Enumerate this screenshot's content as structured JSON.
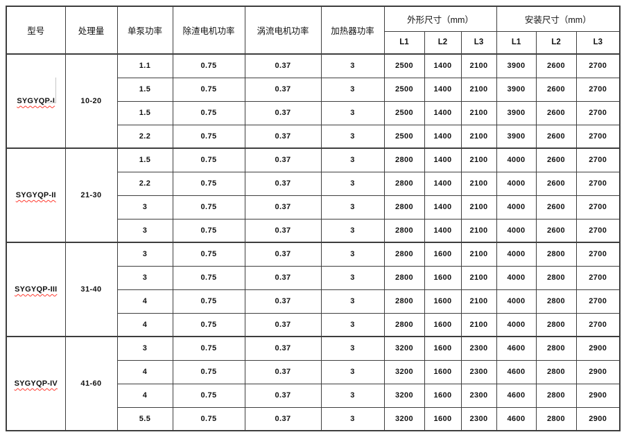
{
  "colors": {
    "background": "#ffffff",
    "border": "#3d3d3d",
    "text": "#111111",
    "spellcheck_underline": "#ff3b30",
    "stray_line": "#c5c5c5"
  },
  "table": {
    "header": {
      "model": "型号",
      "capacity": "处理量",
      "pump_power": "单泵功率",
      "slag_motor_power": "除渣电机功率",
      "eddy_motor_power": "涡流电机功率",
      "heater_power": "加热器功率",
      "overall_dims": "外形尺寸（mm）",
      "install_dims": "安装尺寸（mm）",
      "dims": [
        "L1",
        "L2",
        "L3"
      ]
    },
    "groups": [
      {
        "model": "SYGYQP-I",
        "capacity": "10-20",
        "stray_artifact": true,
        "rows": [
          {
            "pump": "1.1",
            "slag": "0.75",
            "eddy": "0.37",
            "heater": "3",
            "overall": [
              "2500",
              "1400",
              "2100"
            ],
            "install": [
              "3900",
              "2600",
              "2700"
            ]
          },
          {
            "pump": "1.5",
            "slag": "0.75",
            "eddy": "0.37",
            "heater": "3",
            "overall": [
              "2500",
              "1400",
              "2100"
            ],
            "install": [
              "3900",
              "2600",
              "2700"
            ]
          },
          {
            "pump": "1.5",
            "slag": "0.75",
            "eddy": "0.37",
            "heater": "3",
            "overall": [
              "2500",
              "1400",
              "2100"
            ],
            "install": [
              "3900",
              "2600",
              "2700"
            ]
          },
          {
            "pump": "2.2",
            "slag": "0.75",
            "eddy": "0.37",
            "heater": "3",
            "overall": [
              "2500",
              "1400",
              "2100"
            ],
            "install": [
              "3900",
              "2600",
              "2700"
            ]
          }
        ]
      },
      {
        "model": "SYGYQP-II",
        "capacity": "21-30",
        "stray_artifact": false,
        "rows": [
          {
            "pump": "1.5",
            "slag": "0.75",
            "eddy": "0.37",
            "heater": "3",
            "overall": [
              "2800",
              "1400",
              "2100"
            ],
            "install": [
              "4000",
              "2600",
              "2700"
            ]
          },
          {
            "pump": "2.2",
            "slag": "0.75",
            "eddy": "0.37",
            "heater": "3",
            "overall": [
              "2800",
              "1400",
              "2100"
            ],
            "install": [
              "4000",
              "2600",
              "2700"
            ]
          },
          {
            "pump": "3",
            "slag": "0.75",
            "eddy": "0.37",
            "heater": "3",
            "overall": [
              "2800",
              "1400",
              "2100"
            ],
            "install": [
              "4000",
              "2600",
              "2700"
            ]
          },
          {
            "pump": "3",
            "slag": "0.75",
            "eddy": "0.37",
            "heater": "3",
            "overall": [
              "2800",
              "1400",
              "2100"
            ],
            "install": [
              "4000",
              "2600",
              "2700"
            ]
          }
        ]
      },
      {
        "model": "SYGYQP-III",
        "capacity": "31-40",
        "stray_artifact": false,
        "rows": [
          {
            "pump": "3",
            "slag": "0.75",
            "eddy": "0.37",
            "heater": "3",
            "overall": [
              "2800",
              "1600",
              "2100"
            ],
            "install": [
              "4000",
              "2800",
              "2700"
            ]
          },
          {
            "pump": "3",
            "slag": "0.75",
            "eddy": "0.37",
            "heater": "3",
            "overall": [
              "2800",
              "1600",
              "2100"
            ],
            "install": [
              "4000",
              "2800",
              "2700"
            ]
          },
          {
            "pump": "4",
            "slag": "0.75",
            "eddy": "0.37",
            "heater": "3",
            "overall": [
              "2800",
              "1600",
              "2100"
            ],
            "install": [
              "4000",
              "2800",
              "2700"
            ]
          },
          {
            "pump": "4",
            "slag": "0.75",
            "eddy": "0.37",
            "heater": "3",
            "overall": [
              "2800",
              "1600",
              "2100"
            ],
            "install": [
              "4000",
              "2800",
              "2700"
            ]
          }
        ]
      },
      {
        "model": "SYGYQP-IV",
        "capacity": "41-60",
        "stray_artifact": false,
        "rows": [
          {
            "pump": "3",
            "slag": "0.75",
            "eddy": "0.37",
            "heater": "3",
            "overall": [
              "3200",
              "1600",
              "2300"
            ],
            "install": [
              "4600",
              "2800",
              "2900"
            ]
          },
          {
            "pump": "4",
            "slag": "0.75",
            "eddy": "0.37",
            "heater": "3",
            "overall": [
              "3200",
              "1600",
              "2300"
            ],
            "install": [
              "4600",
              "2800",
              "2900"
            ]
          },
          {
            "pump": "4",
            "slag": "0.75",
            "eddy": "0.37",
            "heater": "3",
            "overall": [
              "3200",
              "1600",
              "2300"
            ],
            "install": [
              "4600",
              "2800",
              "2900"
            ]
          },
          {
            "pump": "5.5",
            "slag": "0.75",
            "eddy": "0.37",
            "heater": "3",
            "overall": [
              "3200",
              "1600",
              "2300"
            ],
            "install": [
              "4600",
              "2800",
              "2900"
            ]
          }
        ]
      }
    ]
  }
}
